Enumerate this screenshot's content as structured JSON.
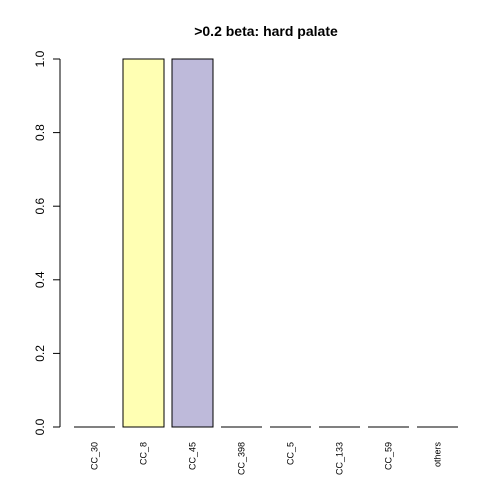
{
  "chart_data": {
    "type": "bar",
    "title": ">0.2 beta:  hard palate",
    "xlabel": "",
    "ylabel": "",
    "categories": [
      "CC_30",
      "CC_8",
      "CC_45",
      "CC_398",
      "CC_5",
      "CC_133",
      "CC_59",
      "others"
    ],
    "values": [
      0,
      1,
      1,
      0,
      0,
      0,
      0,
      0
    ],
    "colors": [
      "#8DD3C7",
      "#FFFFB3",
      "#BEBADA",
      "#FB8072",
      "#80B1D3",
      "#FDB462",
      "#B3DE69",
      "#FCCDE5"
    ],
    "ylim": [
      0,
      1
    ],
    "yticks": [
      0.0,
      0.2,
      0.4,
      0.6,
      0.8,
      1.0
    ],
    "ytick_labels": [
      "0.0",
      "0.2",
      "0.4",
      "0.6",
      "0.8",
      "1.0"
    ],
    "grid": false,
    "legend": "none"
  }
}
